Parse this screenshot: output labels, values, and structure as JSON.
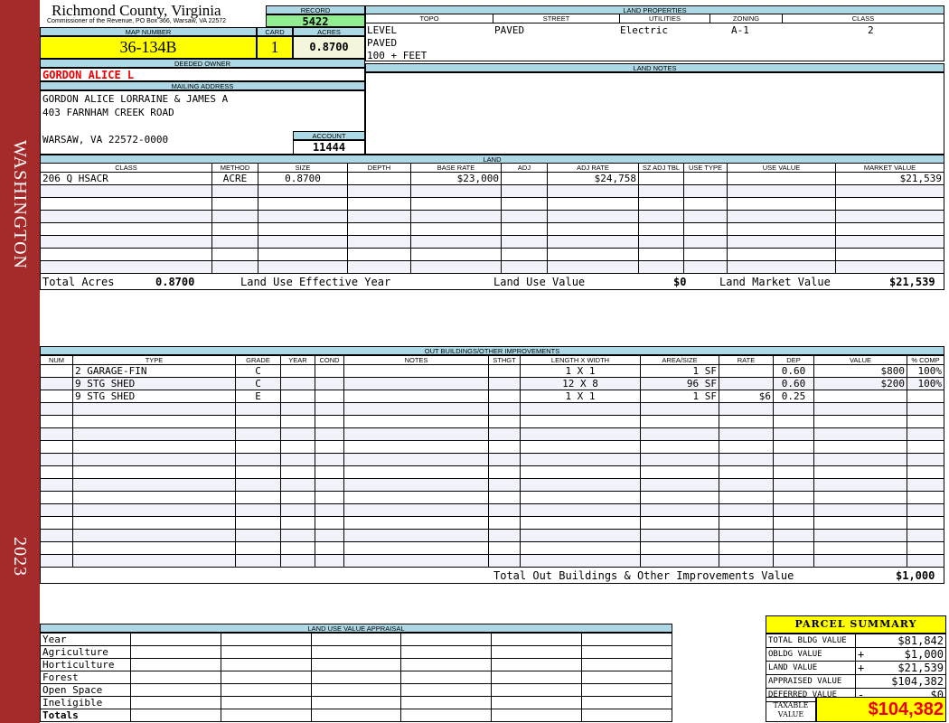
{
  "side": {
    "district": "WASHINGTON",
    "year": "2023"
  },
  "header": {
    "title": "Richmond County, Virginia",
    "subtitle": "Commissioner of the Revenue, PO Box 366, Warsaw, VA 22572",
    "record_label": "RECORD",
    "record": "5422"
  },
  "parcel": {
    "map_label": "MAP NUMBER",
    "map": "36-134B",
    "card_label": "CARD",
    "card": "1",
    "acres_label": "ACRES",
    "acres": "0.8700"
  },
  "owner": {
    "label": "DEEDED OWNER",
    "name": "GORDON ALICE L",
    "mail_label": "MAILING ADDRESS",
    "lines": [
      "GORDON ALICE LORRAINE & JAMES A",
      "403 FARNHAM CREEK ROAD",
      "WARSAW, VA 22572-0000"
    ],
    "account_label": "ACCOUNT",
    "account": "11444"
  },
  "land_properties": {
    "label": "LAND PROPERTIES",
    "headers": [
      "TOPO",
      "STREET",
      "UTILITIES",
      "ZONING",
      "CLASS"
    ],
    "topo": [
      "LEVEL",
      "PAVED",
      "100 + FEET"
    ],
    "street": "PAVED",
    "utilities": "Electric",
    "zoning": "A-1",
    "class": "2"
  },
  "land_notes": {
    "label": "LAND NOTES"
  },
  "land": {
    "label": "LAND",
    "headers": [
      "CLASS",
      "METHOD",
      "SIZE",
      "DEPTH",
      "BASE RATE",
      "ADJ",
      "ADJ RATE",
      "SZ ADJ TBL",
      "USE TYPE",
      "USE VALUE",
      "MARKET VALUE"
    ],
    "rows": [
      [
        "206 Q HSACR",
        "ACRE",
        "0.8700",
        "",
        "$23,000",
        "",
        "$24,758",
        "",
        "",
        "",
        "$21,539"
      ]
    ],
    "totals": {
      "acres_label": "Total Acres",
      "acres": "0.8700",
      "eff_label": "Land Use Effective Year",
      "use_label": "Land Use Value",
      "use": "$0",
      "market_label": "Land Market Value",
      "market": "$21,539"
    }
  },
  "outbuildings": {
    "label": "OUT BUILDINGS/OTHER IMPROVEMENTS",
    "headers": [
      "NUM",
      "TYPE",
      "GRADE",
      "YEAR",
      "COND",
      "NOTES",
      "STHGT",
      "LENGTH X WIDTH",
      "AREA/SIZE",
      "RATE",
      "DEP",
      "VALUE",
      "% COMP"
    ],
    "rows": [
      [
        "",
        "2 GARAGE-FIN",
        "C",
        "",
        "",
        "",
        "",
        "1 X 1",
        "1 SF",
        "",
        "0.60",
        "$800",
        "100%"
      ],
      [
        "",
        "9 STG SHED",
        "C",
        "",
        "",
        "",
        "",
        "12 X 8",
        "96 SF",
        "",
        "0.60",
        "$200",
        "100%"
      ],
      [
        "",
        "9 STG SHED",
        "E",
        "",
        "",
        "",
        "",
        "1 X 1",
        "1 SF",
        "$6",
        "0.25",
        "",
        ""
      ]
    ],
    "total_label": "Total Out Buildings & Other Improvements Value",
    "total": "$1,000"
  },
  "land_use": {
    "label": "LAND USE VALUE APPRAISAL",
    "rows": [
      "Year",
      "Agriculture",
      "Horticulture",
      "Forest",
      "Open Space",
      "Ineligible",
      "Totals"
    ]
  },
  "summary": {
    "title": "PARCEL SUMMARY",
    "rows": [
      [
        "TOTAL BLDG VALUE",
        "",
        "$81,842"
      ],
      [
        "OBLDG VALUE",
        "+",
        "$1,000"
      ],
      [
        "LAND VALUE",
        "+",
        "$21,539"
      ],
      [
        "APPRAISED VALUE",
        "",
        "$104,382"
      ],
      [
        "DEFERRED VALUE",
        "-",
        "$0"
      ]
    ],
    "taxable_label": "TAXABLE VALUE",
    "taxable": "$104,382"
  },
  "colors": {
    "band": "#a52a2a",
    "label": "#add8e6",
    "highlight": "#ffff00",
    "record": "#90ee90",
    "owner": "#ff0000"
  }
}
